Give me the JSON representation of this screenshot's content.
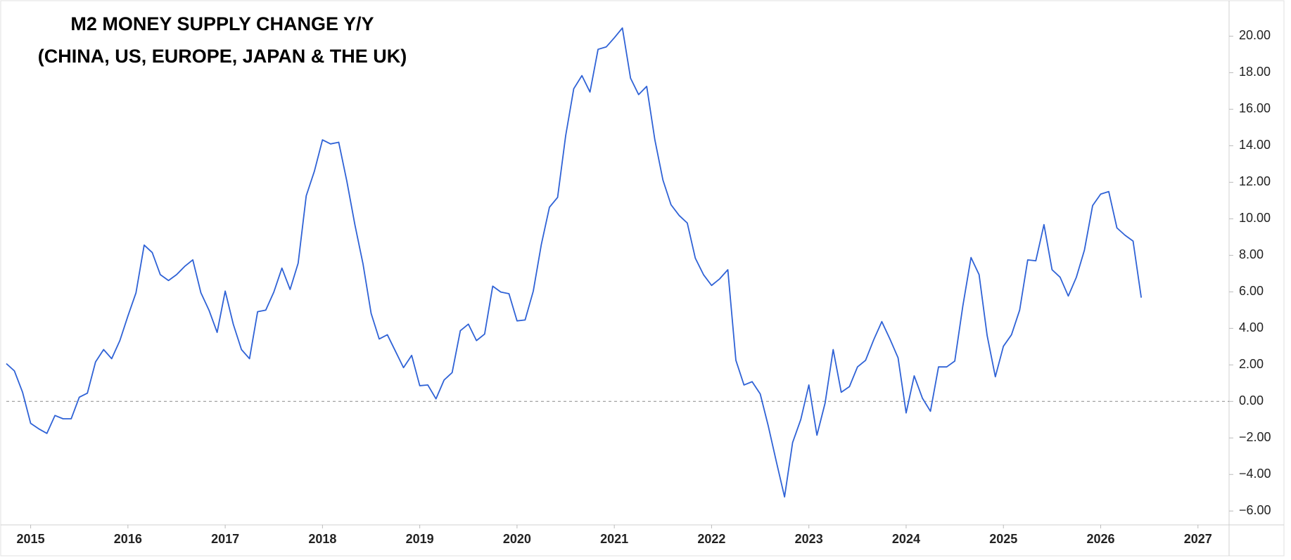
{
  "chart_data": {
    "type": "line",
    "title": [
      "M2 MONEY SUPPLY CHANGE Y/Y",
      "(CHINA, US, EUROPE, JAPAN & THE UK)"
    ],
    "x": [
      2014.75,
      2014.833,
      2014.917,
      2015,
      2015.083,
      2015.167,
      2015.25,
      2015.333,
      2015.417,
      2015.5,
      2015.583,
      2015.667,
      2015.75,
      2015.833,
      2015.917,
      2016,
      2016.083,
      2016.167,
      2016.25,
      2016.333,
      2016.417,
      2016.5,
      2016.583,
      2016.667,
      2016.75,
      2016.833,
      2016.917,
      2017,
      2017.083,
      2017.167,
      2017.25,
      2017.333,
      2017.417,
      2017.5,
      2017.583,
      2017.667,
      2017.75,
      2017.833,
      2017.917,
      2018,
      2018.083,
      2018.167,
      2018.25,
      2018.333,
      2018.417,
      2018.5,
      2018.583,
      2018.667,
      2018.75,
      2018.833,
      2018.917,
      2019,
      2019.083,
      2019.167,
      2019.25,
      2019.333,
      2019.417,
      2019.5,
      2019.583,
      2019.667,
      2019.75,
      2019.833,
      2019.917,
      2020,
      2020.083,
      2020.167,
      2020.25,
      2020.333,
      2020.417,
      2020.5,
      2020.583,
      2020.667,
      2020.75,
      2020.833,
      2020.917,
      2021,
      2021.083,
      2021.167,
      2021.25,
      2021.333,
      2021.417,
      2021.5,
      2021.583,
      2021.667,
      2021.75,
      2021.833,
      2021.917,
      2022,
      2022.083,
      2022.167,
      2022.25,
      2022.333,
      2022.417,
      2022.5,
      2022.583,
      2022.667,
      2022.75,
      2022.833,
      2022.917,
      2023,
      2023.083,
      2023.167,
      2023.25,
      2023.333,
      2023.417,
      2023.5,
      2023.583,
      2023.667,
      2023.75,
      2023.833,
      2023.917,
      2024,
      2024.083,
      2024.167,
      2024.25,
      2024.333,
      2024.417,
      2024.5,
      2024.583,
      2024.667,
      2024.75,
      2024.833,
      2024.917,
      2025,
      2025.083,
      2025.167,
      2025.25,
      2025.333,
      2025.417,
      2025.5,
      2025.583,
      2025.667,
      2025.75,
      2025.833,
      2025.917,
      2026,
      2026.083,
      2026.167,
      2026.25,
      2026.333,
      2026.417
    ],
    "series": [
      {
        "color": "#2f62d6",
        "values": [
          2.07,
          1.67,
          0.5,
          -1.2,
          -1.5,
          -1.75,
          -0.77,
          -0.95,
          -0.95,
          0.23,
          0.45,
          2.16,
          2.84,
          2.34,
          3.33,
          4.68,
          5.95,
          8.56,
          8.15,
          6.94,
          6.62,
          6.94,
          7.39,
          7.75,
          5.95,
          5.0,
          3.78,
          6.04,
          4.23,
          2.84,
          2.34,
          4.91,
          5.0,
          5.99,
          7.3,
          6.13,
          7.57,
          11.26,
          12.61,
          14.32,
          14.1,
          14.19,
          12.07,
          9.68,
          7.52,
          4.82,
          3.42,
          3.65,
          2.75,
          1.85,
          2.52,
          0.86,
          0.9,
          0.14,
          1.17,
          1.58,
          3.87,
          4.23,
          3.33,
          3.69,
          6.31,
          5.99,
          5.9,
          4.41,
          4.46,
          6.04,
          8.6,
          10.63,
          11.17,
          14.55,
          17.12,
          17.84,
          16.94,
          19.28,
          19.41,
          19.91,
          20.45,
          17.7,
          16.8,
          17.25,
          14.32,
          12.12,
          10.77,
          10.18,
          9.77,
          7.84,
          6.94,
          6.35,
          6.71,
          7.21,
          2.25,
          0.9,
          1.08,
          0.41,
          -1.35,
          -3.33,
          -5.23,
          -2.25,
          -0.99,
          0.9,
          -1.85,
          -0.09,
          2.84,
          0.5,
          0.81,
          1.89,
          2.25,
          3.38,
          4.37,
          3.42,
          2.39,
          -0.63,
          1.4,
          0.18,
          -0.54,
          1.89,
          1.89,
          2.21,
          5.23,
          7.88,
          6.94,
          3.6,
          1.35,
          3.02,
          3.65,
          5.0,
          7.75,
          7.7,
          9.68,
          7.21,
          6.8,
          5.77,
          6.8,
          8.29,
          10.72,
          11.35,
          11.49,
          9.5,
          9.1,
          8.78,
          5.68
        ]
      }
    ],
    "xlim": [
      2014.75,
      2027.32
    ],
    "xticks": [
      2015,
      2016,
      2017,
      2018,
      2019,
      2020,
      2021,
      2022,
      2023,
      2024,
      2025,
      2026,
      2027
    ],
    "ylim": [
      -6.76,
      21.98
    ],
    "yticks": [
      {
        "value": -6,
        "label": "−6.00"
      },
      {
        "value": -4,
        "label": "−4.00"
      },
      {
        "value": -2,
        "label": "−2.00"
      },
      {
        "value": 0,
        "label": "0.00"
      },
      {
        "value": 2,
        "label": "2.00"
      },
      {
        "value": 4,
        "label": "4.00"
      },
      {
        "value": 6,
        "label": "6.00"
      },
      {
        "value": 8,
        "label": "8.00"
      },
      {
        "value": 10,
        "label": "10.00"
      },
      {
        "value": 12,
        "label": "12.00"
      },
      {
        "value": 14,
        "label": "14.00"
      },
      {
        "value": 16,
        "label": "16.00"
      },
      {
        "value": 18,
        "label": "18.00"
      },
      {
        "value": 20,
        "label": "20.00"
      }
    ],
    "reference_line": 0,
    "grid": false
  }
}
